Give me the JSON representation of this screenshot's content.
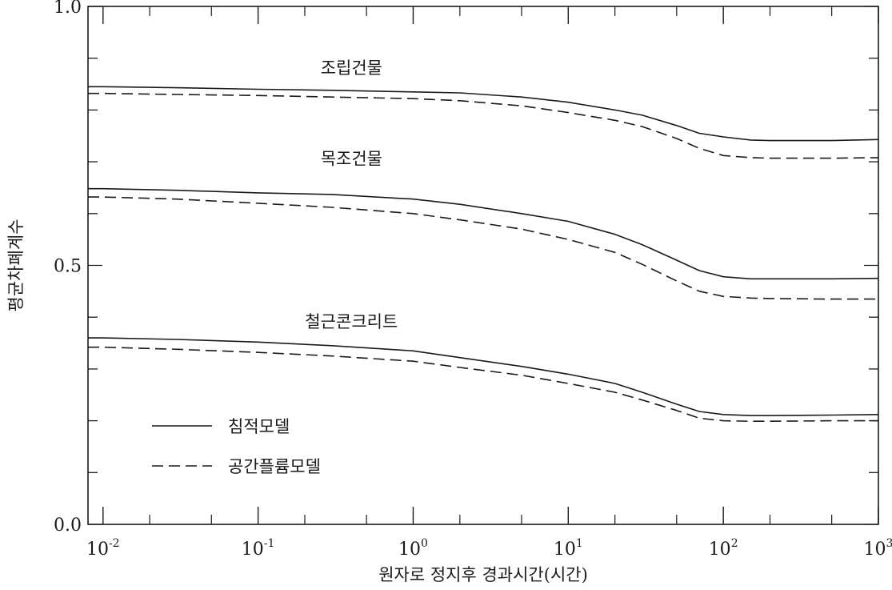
{
  "chart_data": {
    "type": "line",
    "title": "",
    "xlabel": "원자로 정지후 경과시간(시간)",
    "ylabel": "평균차폐계수",
    "x_scale": "log",
    "xlim": [
      0.008,
      1000
    ],
    "ylim": [
      0.0,
      1.0
    ],
    "x_ticks": [
      {
        "base": "10",
        "exp": "-2"
      },
      {
        "base": "10",
        "exp": "-1"
      },
      {
        "base": "10",
        "exp": "0"
      },
      {
        "base": "10",
        "exp": "1"
      },
      {
        "base": "10",
        "exp": "2"
      },
      {
        "base": "10",
        "exp": "3"
      }
    ],
    "y_ticks": [
      "0.0",
      "0.5",
      "1.0"
    ],
    "grid": false,
    "legend_position": "bottom-left",
    "legend": [
      {
        "label": "침적모델",
        "style": "solid"
      },
      {
        "label": "공간플륨모델",
        "style": "dashed"
      }
    ],
    "annotations": [
      {
        "text": "조립건물",
        "x": 0.4,
        "y": 0.87
      },
      {
        "text": "목조건물",
        "x": 0.4,
        "y": 0.695
      },
      {
        "text": "철근콘크리트",
        "x": 0.4,
        "y": 0.38
      }
    ],
    "x": [
      0.008,
      0.01,
      0.03,
      0.1,
      0.3,
      1,
      2,
      5,
      10,
      20,
      30,
      50,
      70,
      100,
      150,
      200,
      500,
      1000
    ],
    "series": [
      {
        "group": "조립건물",
        "model": "침적모델",
        "style": "solid",
        "values": [
          0.845,
          0.845,
          0.843,
          0.84,
          0.838,
          0.835,
          0.833,
          0.825,
          0.815,
          0.8,
          0.79,
          0.77,
          0.755,
          0.748,
          0.742,
          0.741,
          0.741,
          0.743
        ]
      },
      {
        "group": "조립건물",
        "model": "공간플륨모델",
        "style": "dashed",
        "values": [
          0.832,
          0.832,
          0.83,
          0.828,
          0.825,
          0.822,
          0.818,
          0.808,
          0.795,
          0.78,
          0.768,
          0.745,
          0.726,
          0.712,
          0.708,
          0.707,
          0.707,
          0.708
        ]
      },
      {
        "group": "목조건물",
        "model": "침적모델",
        "style": "solid",
        "values": [
          0.648,
          0.648,
          0.645,
          0.64,
          0.637,
          0.628,
          0.618,
          0.6,
          0.585,
          0.56,
          0.54,
          0.51,
          0.49,
          0.478,
          0.474,
          0.474,
          0.474,
          0.475
        ]
      },
      {
        "group": "목조건물",
        "model": "공간플륨모델",
        "style": "dashed",
        "values": [
          0.632,
          0.632,
          0.628,
          0.62,
          0.612,
          0.6,
          0.588,
          0.57,
          0.55,
          0.525,
          0.502,
          0.47,
          0.45,
          0.44,
          0.437,
          0.436,
          0.435,
          0.435
        ]
      },
      {
        "group": "철근콘크리트",
        "model": "침적모델",
        "style": "solid",
        "values": [
          0.36,
          0.36,
          0.357,
          0.352,
          0.345,
          0.335,
          0.322,
          0.305,
          0.29,
          0.272,
          0.255,
          0.232,
          0.218,
          0.212,
          0.21,
          0.21,
          0.211,
          0.212
        ]
      },
      {
        "group": "철근콘크리트",
        "model": "공간플륨모델",
        "style": "dashed",
        "values": [
          0.342,
          0.342,
          0.338,
          0.332,
          0.325,
          0.315,
          0.303,
          0.288,
          0.272,
          0.255,
          0.24,
          0.22,
          0.205,
          0.2,
          0.199,
          0.199,
          0.2,
          0.2
        ]
      }
    ]
  }
}
